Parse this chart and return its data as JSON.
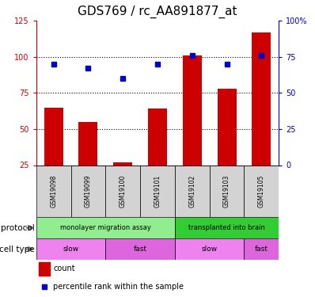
{
  "title": "GDS769 / rc_AA891877_at",
  "samples": [
    "GSM19098",
    "GSM19099",
    "GSM19100",
    "GSM19101",
    "GSM19102",
    "GSM19103",
    "GSM19105"
  ],
  "count_values": [
    65,
    55,
    27,
    64,
    101,
    78,
    117
  ],
  "percentile_values": [
    70,
    67,
    60,
    70,
    76,
    70,
    76
  ],
  "left_ylim": [
    25,
    125
  ],
  "right_ylim": [
    0,
    100
  ],
  "left_yticks": [
    25,
    50,
    75,
    100,
    125
  ],
  "right_yticks": [
    0,
    25,
    50,
    75,
    100
  ],
  "right_yticklabels": [
    "0",
    "25",
    "50",
    "75",
    "100%"
  ],
  "bar_color": "#cc0000",
  "dot_color": "#0000cc",
  "title_fontsize": 11,
  "protocol_groups": [
    {
      "label": "monolayer migration assay",
      "start": 0,
      "end": 4,
      "color": "#90ee90"
    },
    {
      "label": "transplanted into brain",
      "start": 4,
      "end": 7,
      "color": "#32cd32"
    }
  ],
  "celltype_groups": [
    {
      "label": "slow",
      "start": 0,
      "end": 2,
      "color": "#ee82ee"
    },
    {
      "label": "fast",
      "start": 2,
      "end": 4,
      "color": "#dd66dd"
    },
    {
      "label": "slow",
      "start": 4,
      "end": 6,
      "color": "#ee82ee"
    },
    {
      "label": "fast",
      "start": 6,
      "end": 7,
      "color": "#dd66dd"
    }
  ],
  "sample_bg_color": "#d3d3d3",
  "legend_count_label": "count",
  "legend_pct_label": "percentile rank within the sample",
  "protocol_label": "protocol",
  "celltype_label": "cell type",
  "left_axis_color": "#cc0000",
  "right_axis_color": "#0000cc"
}
